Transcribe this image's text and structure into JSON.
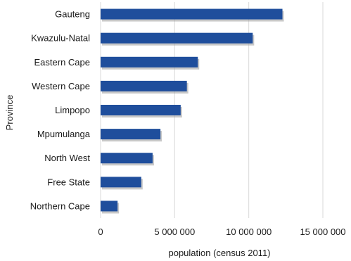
{
  "chart_data": {
    "type": "bar",
    "orientation": "horizontal",
    "categories": [
      "Gauteng",
      "Kwazulu-Natal",
      "Eastern Cape",
      "Western Cape",
      "Limpopo",
      "Mpumulanga",
      "North West",
      "Free State",
      "Northern Cape"
    ],
    "values": [
      12272263,
      10267300,
      6562053,
      5822734,
      5404868,
      4039939,
      3509953,
      2745590,
      1145861
    ],
    "xlabel": "population (census 2011)",
    "ylabel": "Province",
    "xlim": [
      0,
      15000000
    ],
    "xticks": [
      0,
      5000000,
      10000000,
      15000000
    ],
    "xtick_labels": [
      "0",
      "5 000 000",
      "10 000 000",
      "15 000 000"
    ],
    "grid": true,
    "bar_color": "#1f4e9c"
  }
}
